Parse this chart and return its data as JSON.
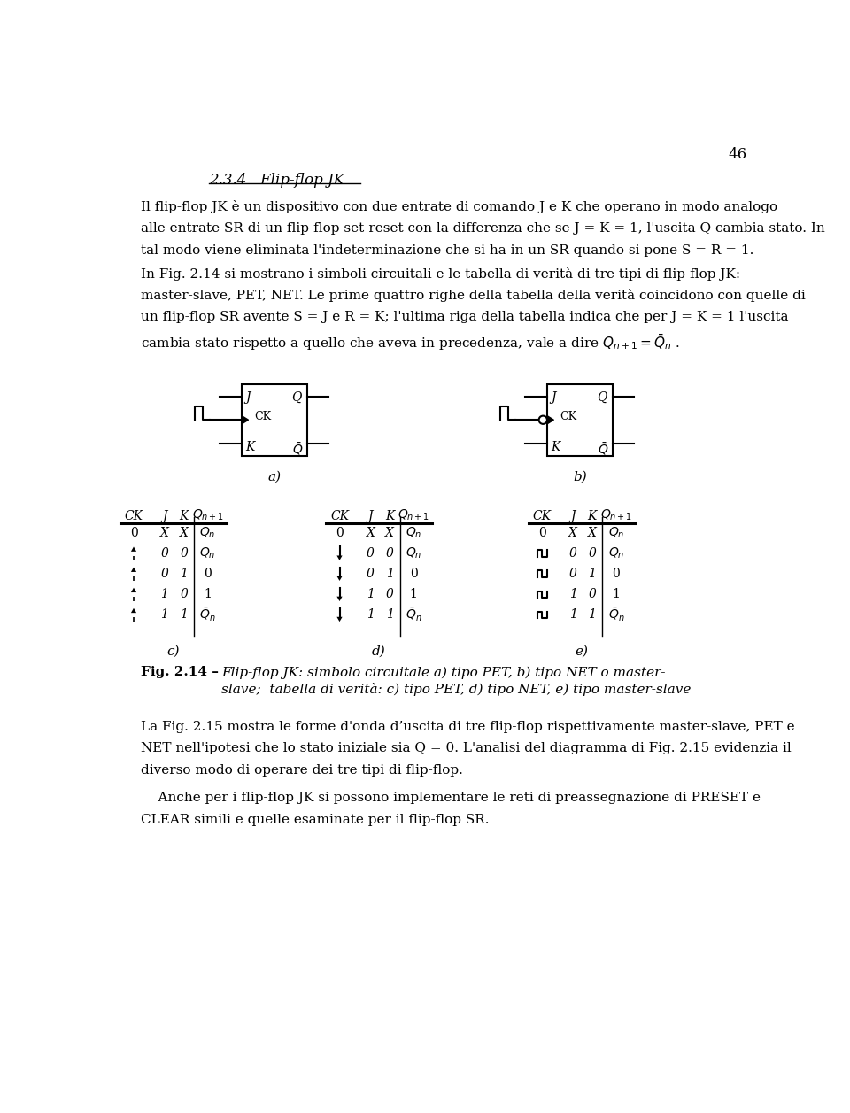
{
  "page_number": "46",
  "background_color": "#ffffff",
  "text_color": "#000000",
  "section_title": "2.3.4   Flip-flop JK",
  "p1_lines": [
    "Il flip-flop JK è un dispositivo con due entrate di comando J e K che operano in modo analogo",
    "alle entrate SR di un flip-flop set-reset con la differenza che se J = K = 1, l'uscita Q cambia stato. In",
    "tal modo viene eliminata l'indeterminazione che si ha in un SR quando si pone S = R = 1."
  ],
  "p2_lines": [
    "In Fig. 2.14 si mostrano i simboli circuitali e le tabella di verità di tre tipi di flip-flop JK:",
    "master-slave, PET, NET. Le prime quattro righe della tabella della verità coincidono con quelle di",
    "un flip-flop SR avente S = J e R = K; l'ultima riga della tabella indica che per J = K = 1 l'uscita",
    "cambia stato rispetto a quello che aveva in precedenza, vale a dire $Q_{n+1} = \\bar{Q}_n$ ."
  ],
  "p3_lines": [
    "La Fig. 2.15 mostra le forme d'onda d’uscita di tre flip-flop rispettivamente master-slave, PET e",
    "NET nell'ipotesi che lo stato iniziale sia Q = 0. L'analisi del diagramma di Fig. 2.15 evidenzia il",
    "diverso modo di operare dei tre tipi di flip-flop."
  ],
  "p4_lines": [
    "    Anche per i flip-flop JK si possono implementare le reti di preassegnazione di PRESET e",
    "CLEAR simili e quelle esaminate per il flip-flop SR."
  ],
  "fig_caption_bold": "Fig. 2.14 –  ",
  "fig_caption_line1": "Flip-flop JK: simbolo circuitale a) tipo PET, b) tipo NET o master-",
  "fig_caption_line2": "slave;  tabella di verità: c) tipo PET, d) tipo NET, e) tipo master-slave"
}
